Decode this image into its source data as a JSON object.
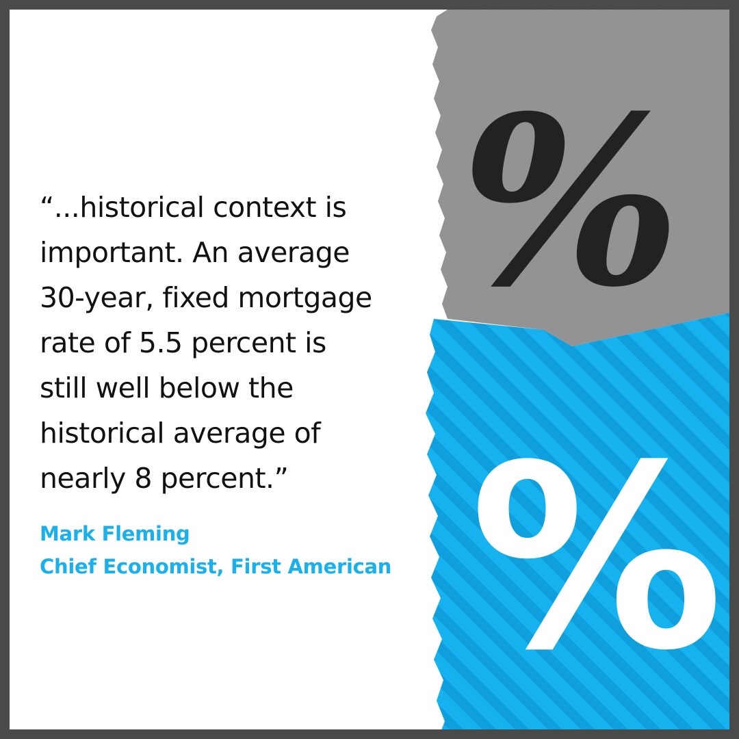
{
  "quote": {
    "lines": [
      "“...historical context is",
      "important. An average",
      "30-year, fixed mortgage",
      "rate of 5.5 percent is",
      "still well below the",
      "historical average of",
      "nearly 8 percent.”"
    ]
  },
  "attribution": {
    "name": "Mark Fleming",
    "title": "Chief Economist, First American"
  },
  "art": {
    "top_symbol": "%",
    "bottom_symbol": "%"
  },
  "colors": {
    "frame": "#4a4a4a",
    "quote_text": "#111111",
    "accent_blue": "#1ab0ec",
    "gray_panel": "#8f8f8f"
  }
}
